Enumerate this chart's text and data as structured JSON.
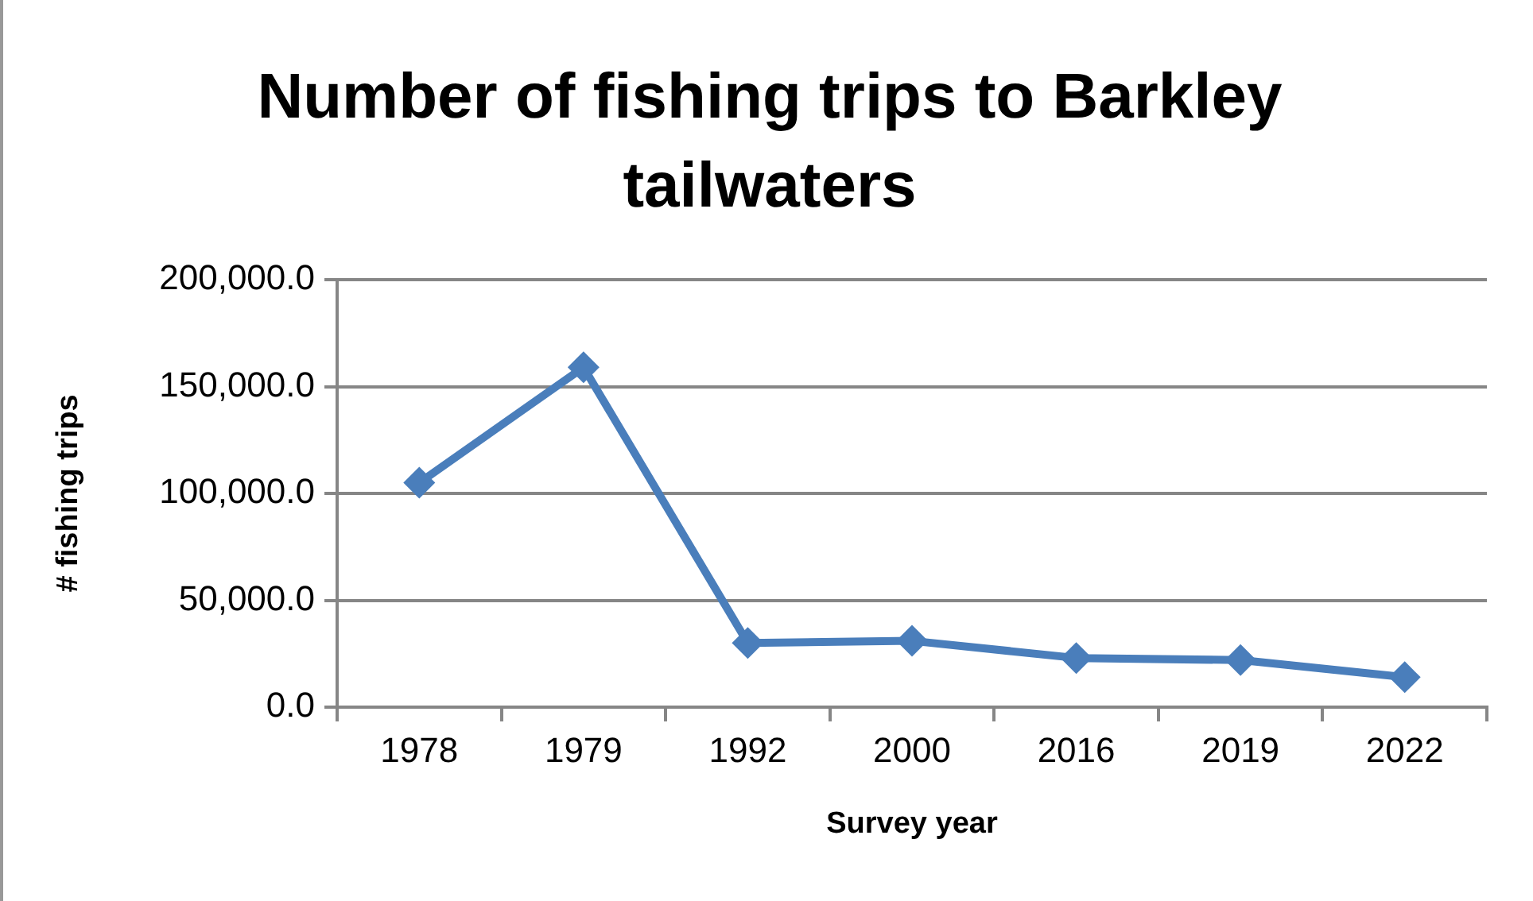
{
  "chart_data": {
    "type": "line",
    "title": "Number of fishing trips to Barkley tailwaters",
    "xlabel": "Survey year",
    "ylabel": "# fishing trips",
    "categories": [
      "1978",
      "1979",
      "1992",
      "2000",
      "2016",
      "2019",
      "2022"
    ],
    "values": [
      105000,
      159000,
      30000,
      31000,
      23000,
      22000,
      14000
    ],
    "color": "#4a7ebb",
    "ylim": [
      0,
      200000
    ],
    "yticks": [
      {
        "value": 0,
        "label": "0.0"
      },
      {
        "value": 50000,
        "label": "50,000.0"
      },
      {
        "value": 100000,
        "label": "100,000.0"
      },
      {
        "value": 150000,
        "label": "150,000.0"
      },
      {
        "value": 200000,
        "label": "200,000.0"
      }
    ],
    "grid": "y",
    "marker": "diamond"
  }
}
